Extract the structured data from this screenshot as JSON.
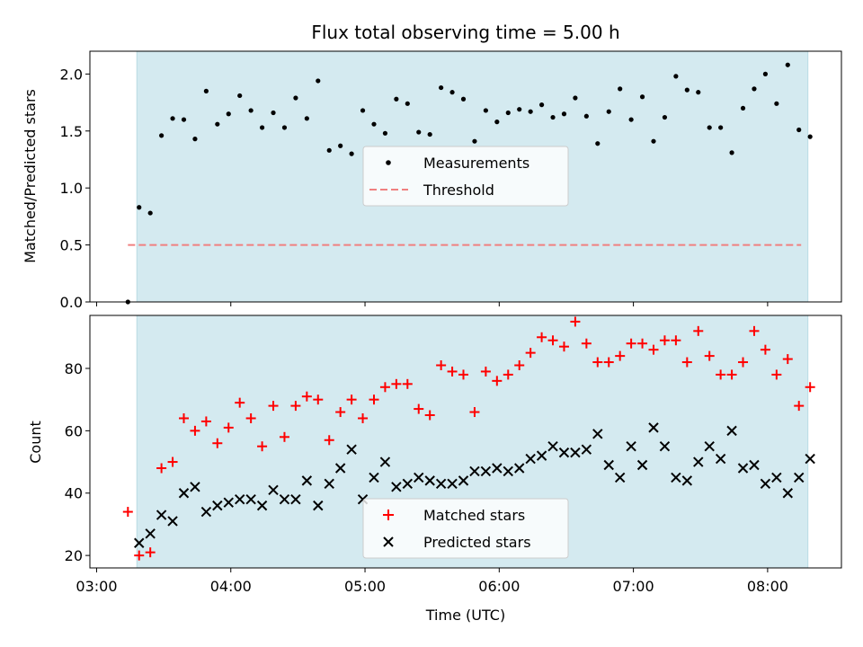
{
  "chart_data": [
    {
      "type": "scatter",
      "title": "Flux total observing time = 5.00 h",
      "ylabel": "Matched/Predicted stars",
      "ylim": [
        0,
        2.2
      ],
      "yticks": [
        "0.0",
        "0.5",
        "1.0",
        "1.5",
        "2.0"
      ],
      "xlim_hours": [
        2.95,
        8.55
      ],
      "shaded_span_hours": [
        3.3,
        8.3
      ],
      "shade_color": "#d4eaf0",
      "legend_position": "center",
      "series": [
        {
          "name": "Measurements",
          "marker": "dot",
          "color": "#000000",
          "x": [
            "03:14",
            "03:19",
            "03:24",
            "03:29",
            "03:34",
            "03:39",
            "03:44",
            "03:49",
            "03:54",
            "03:59",
            "04:04",
            "04:09",
            "04:14",
            "04:19",
            "04:24",
            "04:29",
            "04:34",
            "04:39",
            "04:44",
            "04:49",
            "04:54",
            "04:59",
            "05:04",
            "05:09",
            "05:14",
            "05:19",
            "05:24",
            "05:29",
            "05:34",
            "05:39",
            "05:44",
            "05:49",
            "05:54",
            "05:59",
            "06:04",
            "06:09",
            "06:14",
            "06:19",
            "06:24",
            "06:29",
            "06:34",
            "06:39",
            "06:44",
            "06:49",
            "06:54",
            "06:59",
            "07:04",
            "07:09",
            "07:14",
            "07:19",
            "07:24",
            "07:29",
            "07:34",
            "07:39",
            "07:44",
            "07:49",
            "07:54",
            "07:59",
            "08:04",
            "08:09",
            "08:14",
            "08:19"
          ],
          "y": [
            0.0,
            0.83,
            0.78,
            1.46,
            1.61,
            1.6,
            1.43,
            1.85,
            1.56,
            1.65,
            1.81,
            1.68,
            1.53,
            1.66,
            1.53,
            1.79,
            1.61,
            1.94,
            1.33,
            1.37,
            1.3,
            1.68,
            1.56,
            1.48,
            1.78,
            1.74,
            1.49,
            1.47,
            1.88,
            1.84,
            1.78,
            1.41,
            1.68,
            1.58,
            1.66,
            1.69,
            1.67,
            1.73,
            1.62,
            1.65,
            1.79,
            1.63,
            1.39,
            1.67,
            1.87,
            1.6,
            1.8,
            1.41,
            1.62,
            1.98,
            1.86,
            1.84,
            1.53,
            1.53,
            1.31,
            1.7,
            1.87,
            2.0,
            1.74,
            2.08,
            1.51,
            1.45
          ]
        },
        {
          "name": "Threshold",
          "marker": "dashed-line",
          "color": "#f08080",
          "x": [
            "03:14",
            "08:15"
          ],
          "y": [
            0.5,
            0.5
          ]
        }
      ]
    },
    {
      "type": "scatter",
      "xlabel": "Time (UTC)",
      "ylabel": "Count",
      "ylim": [
        16,
        97
      ],
      "yticks": [
        "20",
        "40",
        "60",
        "80"
      ],
      "xticks": [
        "03:00",
        "04:00",
        "05:00",
        "06:00",
        "07:00",
        "08:00"
      ],
      "xlim_hours": [
        2.95,
        8.55
      ],
      "shaded_span_hours": [
        3.3,
        8.3
      ],
      "legend_position": "lower center",
      "series": [
        {
          "name": "Matched stars",
          "marker": "plus",
          "color": "#ff0000",
          "x": [
            "03:14",
            "03:19",
            "03:24",
            "03:29",
            "03:34",
            "03:39",
            "03:44",
            "03:49",
            "03:54",
            "03:59",
            "04:04",
            "04:09",
            "04:14",
            "04:19",
            "04:24",
            "04:29",
            "04:34",
            "04:39",
            "04:44",
            "04:49",
            "04:54",
            "04:59",
            "05:04",
            "05:09",
            "05:14",
            "05:19",
            "05:24",
            "05:29",
            "05:34",
            "05:39",
            "05:44",
            "05:49",
            "05:54",
            "05:59",
            "06:04",
            "06:09",
            "06:14",
            "06:19",
            "06:24",
            "06:29",
            "06:34",
            "06:39",
            "06:44",
            "06:49",
            "06:54",
            "06:59",
            "07:04",
            "07:09",
            "07:14",
            "07:19",
            "07:24",
            "07:29",
            "07:34",
            "07:39",
            "07:44",
            "07:49",
            "07:54",
            "07:59",
            "08:04",
            "08:09",
            "08:14",
            "08:19"
          ],
          "y": [
            34,
            20,
            21,
            48,
            50,
            64,
            60,
            63,
            56,
            61,
            69,
            64,
            55,
            68,
            58,
            68,
            71,
            70,
            57,
            66,
            70,
            64,
            70,
            74,
            75,
            75,
            67,
            65,
            81,
            79,
            78,
            66,
            79,
            76,
            78,
            81,
            85,
            90,
            89,
            87,
            95,
            88,
            82,
            82,
            84,
            88,
            88,
            86,
            89,
            89,
            82,
            92,
            84,
            78,
            78,
            82,
            92,
            86,
            78,
            83,
            68,
            74
          ]
        },
        {
          "name": "Predicted stars",
          "marker": "x",
          "color": "#000000",
          "x": [
            "03:19",
            "03:24",
            "03:29",
            "03:34",
            "03:39",
            "03:44",
            "03:49",
            "03:54",
            "03:59",
            "04:04",
            "04:09",
            "04:14",
            "04:19",
            "04:24",
            "04:29",
            "04:34",
            "04:39",
            "04:44",
            "04:49",
            "04:54",
            "04:59",
            "05:04",
            "05:09",
            "05:14",
            "05:19",
            "05:24",
            "05:29",
            "05:34",
            "05:39",
            "05:44",
            "05:49",
            "05:54",
            "05:59",
            "06:04",
            "06:09",
            "06:14",
            "06:19",
            "06:24",
            "06:29",
            "06:34",
            "06:39",
            "06:44",
            "06:49",
            "06:54",
            "06:59",
            "07:04",
            "07:09",
            "07:14",
            "07:19",
            "07:24",
            "07:29",
            "07:34",
            "07:39",
            "07:44",
            "07:49",
            "07:54",
            "07:59",
            "08:04",
            "08:09",
            "08:14",
            "08:19"
          ],
          "y": [
            24,
            27,
            33,
            31,
            40,
            42,
            34,
            36,
            37,
            38,
            38,
            36,
            41,
            38,
            38,
            44,
            36,
            43,
            48,
            54,
            38,
            45,
            50,
            42,
            43,
            45,
            44,
            43,
            43,
            44,
            47,
            47,
            48,
            47,
            48,
            51,
            52,
            55,
            53,
            53,
            54,
            59,
            49,
            45,
            55,
            49,
            61,
            55,
            45,
            44,
            50,
            55,
            51,
            60,
            48,
            49,
            43,
            45,
            40,
            45,
            51
          ]
        }
      ]
    }
  ]
}
